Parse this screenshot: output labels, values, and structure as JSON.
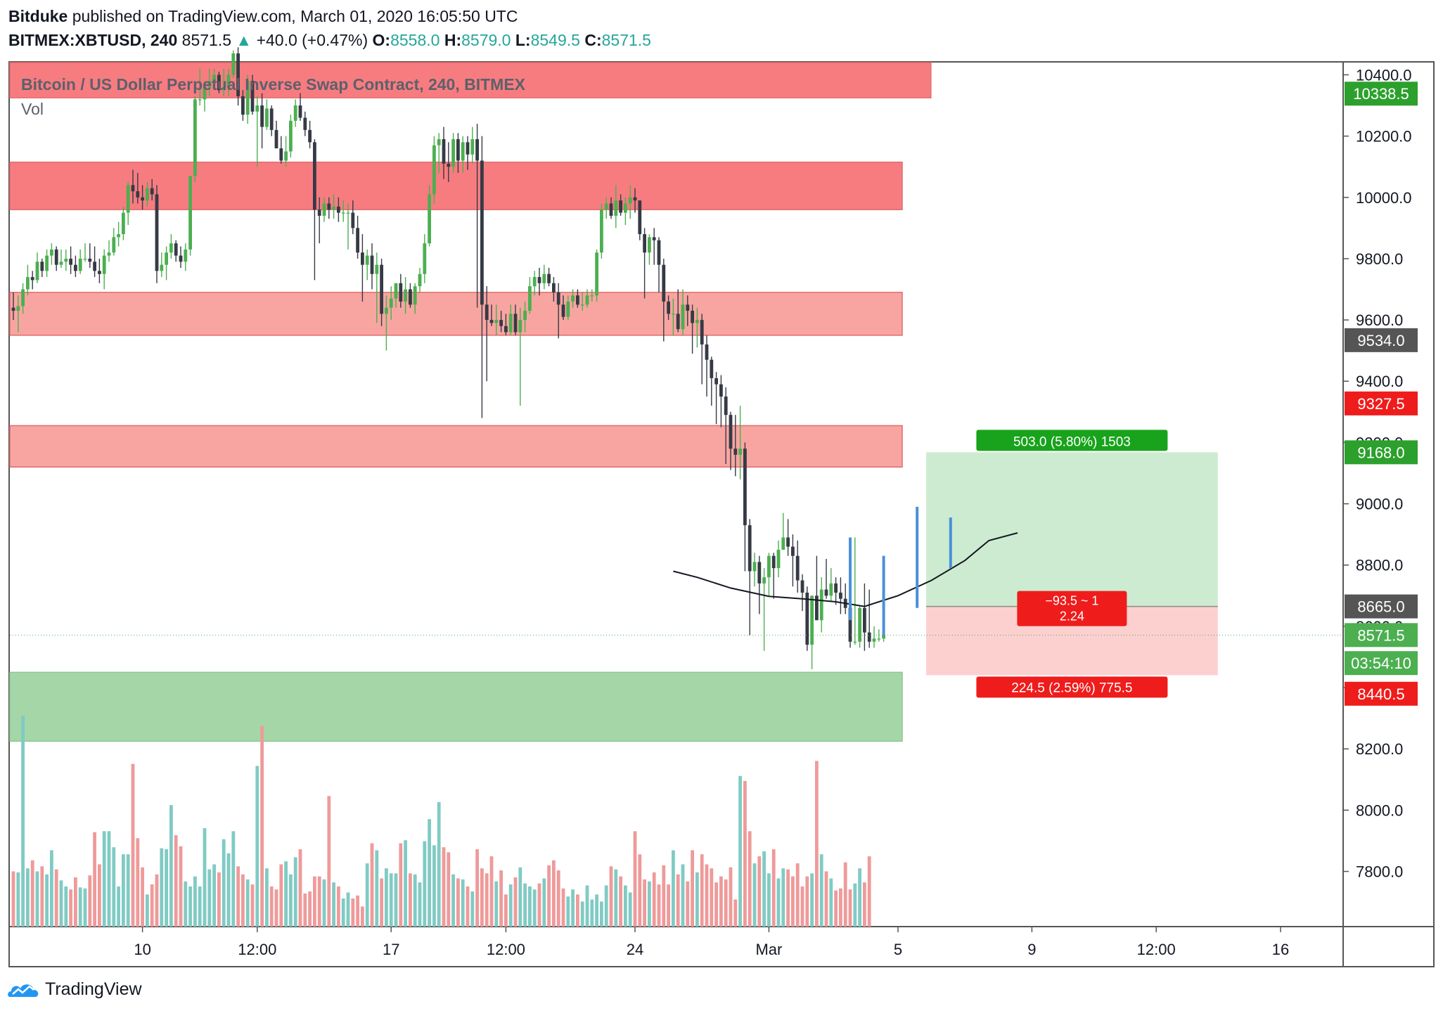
{
  "header": {
    "author": "Bitduke",
    "published_text": "published on TradingView.com, March 01, 2020 16:05:50 UTC",
    "symbol": "BITMEX:XBTUSD, 240",
    "last": "8571.5",
    "change": "+40.0 (+0.47%)",
    "o_label": "O:",
    "o_value": "8558.0",
    "h_label": "H:",
    "h_value": "8579.0",
    "l_label": "L:",
    "l_value": "8549.5",
    "c_label": "C:",
    "c_value": "8571.5"
  },
  "footer": {
    "brand": "TradingView"
  },
  "colors": {
    "up": "#26a69a",
    "candle_up": "#4caf50",
    "candle_down": "#363a45",
    "vol_up": "#80cbc4",
    "vol_down": "#ef9a9a",
    "zone_red": "#f77c80",
    "zone_red_light": "#f8a5a1",
    "zone_green": "#a5d6a7",
    "target_zone": "#cdebd0",
    "stop_zone": "#fdd0d0",
    "projection": "#4a90d9"
  },
  "chart_data": {
    "type": "candlestick",
    "title": "Bitcoin / US Dollar Perpetual Inverse Swap Contract, 240, BITMEX",
    "volume_label": "Vol",
    "y_axis": {
      "min": 7620,
      "max": 10440,
      "ticks": [
        7800,
        8000,
        8200,
        8400,
        8600,
        8800,
        9000,
        9200,
        9400,
        9600,
        9800,
        10000,
        10200,
        10400
      ]
    },
    "y_tick_labels": [
      "7800.0",
      "8000.0",
      "8200.0",
      "8400.0",
      "8600.0",
      "8800.0",
      "9000.0",
      "9200.0",
      "9400.0",
      "9600.0",
      "9800.0",
      "10000.0",
      "10200.0",
      "10400.0"
    ],
    "x_axis": {
      "labels": [
        "10",
        "12:00",
        "17",
        "12:00",
        "24",
        "Mar",
        "5",
        "9",
        "12:00",
        "16"
      ],
      "label_bars": [
        27,
        51,
        79,
        103,
        130,
        158,
        185,
        213,
        239,
        265
      ]
    },
    "price_labels": [
      {
        "value": "10338.5",
        "price": 10338.5,
        "color": "#2ca02c"
      },
      {
        "value": "9534.0",
        "price": 9534.0,
        "color": "#555555"
      },
      {
        "value": "9327.5",
        "price": 9327.5,
        "color": "#ef1c1c"
      },
      {
        "value": "9168.0",
        "price": 9168.0,
        "color": "#2ca02c"
      },
      {
        "value": "8665.0",
        "price": 8665.0,
        "color": "#555555"
      },
      {
        "value": "8571.5",
        "price": 8571.5,
        "color": "#4caf50"
      },
      {
        "value": "03:54:10",
        "price": 8480,
        "color": "#4caf50"
      },
      {
        "value": "8440.5",
        "price": 8380,
        "color": "#ef1c1c"
      }
    ],
    "zones": [
      {
        "name": "resistance-1",
        "from": 10325,
        "to": 10510,
        "bar_end": 186,
        "color": "#f77c80"
      },
      {
        "name": "resistance-2",
        "from": 9960,
        "to": 10115,
        "bar_end": 180,
        "color": "#f77c80"
      },
      {
        "name": "resistance-3",
        "from": 9550,
        "to": 9690,
        "bar_end": 180,
        "color": "#f8a5a1"
      },
      {
        "name": "resistance-4",
        "from": 9120,
        "to": 9255,
        "bar_end": 180,
        "color": "#f8a5a1"
      },
      {
        "name": "support-1",
        "from": 8225,
        "to": 8450,
        "bar_end": 180,
        "color": "#a5d6a7"
      }
    ],
    "position": {
      "entry": 8665.0,
      "target": 9168.0,
      "stop": 8440.5,
      "bar_start": 185,
      "bar_end": 246,
      "target_label": "503.0 (5.80%) 1503",
      "stop_label": "224.5 (2.59%) 775.5",
      "ratio_line1": "−93.5 ~ 1",
      "ratio_line2": "2.24"
    },
    "projection_bars": [
      {
        "bar": 175,
        "low": 8620,
        "high": 8890
      },
      {
        "bar": 182,
        "low": 8570,
        "high": 8830
      },
      {
        "bar": 189,
        "low": 8660,
        "high": 8990
      },
      {
        "bar": 196,
        "low": 8790,
        "high": 8955
      }
    ],
    "ma_curve": [
      [
        138,
        8780
      ],
      [
        143,
        8760
      ],
      [
        150,
        8725
      ],
      [
        158,
        8698
      ],
      [
        165,
        8690
      ],
      [
        172,
        8680
      ],
      [
        178,
        8665
      ],
      [
        185,
        8700
      ],
      [
        192,
        8750
      ],
      [
        199,
        8815
      ],
      [
        204,
        8880
      ],
      [
        210,
        8905
      ]
    ],
    "current_price": 8571.5,
    "candles": {
      "start_date": "2020-02-07",
      "opens": [
        9640,
        9630,
        9645,
        9700,
        9740,
        9730,
        9790,
        9760,
        9810,
        9830,
        9780,
        9790,
        9800,
        9780,
        9760,
        9800,
        9800,
        9790,
        9760,
        9750,
        9810,
        9820,
        9870,
        9880,
        9950,
        10040,
        10020,
        10000,
        9990,
        10030,
        10010,
        9760,
        9780,
        9820,
        9850,
        9810,
        9790,
        9830,
        10070,
        10320,
        10320,
        10360,
        10380,
        10400,
        10350,
        10360,
        10400,
        10470,
        10330,
        10270,
        10380,
        10280,
        10300,
        10230,
        10290,
        10220,
        10160,
        10120,
        10150,
        10250,
        10300,
        10260,
        10220,
        10180,
        9960,
        9940,
        9980,
        9960,
        9970,
        9950,
        9950,
        9950,
        9900,
        9820,
        9780,
        9810,
        9750,
        9780,
        9620,
        9640,
        9670,
        9720,
        9660,
        9700,
        9650,
        9710,
        9750,
        9850,
        10010,
        10170,
        10190,
        10110,
        10100,
        10190,
        10120,
        10180,
        10140,
        10190,
        10120,
        9650,
        9600,
        9590,
        9600,
        9580,
        9560,
        9620,
        9560,
        9600,
        9630,
        9710,
        9740,
        9720,
        9750,
        9720,
        9690,
        9650,
        9610,
        9660,
        9680,
        9650,
        9650,
        9680,
        9680,
        9820,
        9960,
        9980,
        9940,
        9990,
        9950,
        9980,
        10000,
        9990,
        9880,
        9820,
        9870,
        9860,
        9780,
        9660,
        9620,
        9620,
        9570,
        9650,
        9630,
        9590,
        9600,
        9520,
        9470,
        9410,
        9390,
        9350,
        9290,
        9180,
        9160,
        9180,
        8930,
        8780,
        8810,
        8740,
        8760,
        8830,
        8790,
        8850,
        8890,
        8860,
        8830,
        8750,
        8710,
        8540,
        8700,
        8620,
        8720,
        8700,
        8740,
        8710,
        8690,
        8660,
        8550,
        8550,
        8660,
        8580,
        8550,
        8560,
        8560
      ],
      "highs": [
        9690,
        9680,
        9720,
        9780,
        9760,
        9820,
        9800,
        9830,
        9850,
        9840,
        9830,
        9830,
        9840,
        9810,
        9830,
        9850,
        9850,
        9840,
        9800,
        9830,
        9860,
        9900,
        9920,
        9970,
        10050,
        10090,
        10080,
        10040,
        10050,
        10060,
        10040,
        9820,
        9840,
        9880,
        9860,
        9840,
        9850,
        10070,
        10330,
        10420,
        10380,
        10420,
        10420,
        10410,
        10420,
        10420,
        10480,
        10490,
        10350,
        10400,
        10400,
        10330,
        10340,
        10320,
        10300,
        10250,
        10200,
        10200,
        10270,
        10320,
        10340,
        10280,
        10250,
        10190,
        10000,
        10000,
        10000,
        10010,
        10000,
        9990,
        9980,
        9990,
        9940,
        9880,
        9830,
        9850,
        9820,
        9800,
        9680,
        9710,
        9720,
        9750,
        9740,
        9720,
        9720,
        9770,
        9880,
        10040,
        10200,
        10210,
        10230,
        10180,
        10210,
        10210,
        10200,
        10200,
        10230,
        10240,
        10200,
        9710,
        9650,
        9650,
        9630,
        9620,
        9650,
        9650,
        9640,
        9660,
        9740,
        9760,
        9770,
        9780,
        9770,
        9740,
        9720,
        9680,
        9680,
        9700,
        9700,
        9690,
        9700,
        9700,
        9830,
        9980,
        10000,
        10000,
        10040,
        10010,
        10000,
        10040,
        10030,
        9990,
        9900,
        9880,
        9900,
        9870,
        9800,
        9680,
        9670,
        9700,
        9700,
        9680,
        9650,
        9640,
        9620,
        9550,
        9480,
        9430,
        9420,
        9380,
        9300,
        9290,
        9320,
        9200,
        8950,
        8840,
        8830,
        8790,
        8840,
        8840,
        8880,
        8970,
        8950,
        8900,
        8880,
        8770,
        8730,
        8700,
        8830,
        8760,
        8820,
        8790,
        8760,
        8760,
        8740,
        8700,
        8890,
        8670,
        8740,
        8720,
        8600,
        8590,
        8580
      ],
      "lows": [
        9600,
        9560,
        9620,
        9680,
        9700,
        9720,
        9740,
        9740,
        9780,
        9760,
        9770,
        9760,
        9750,
        9740,
        9750,
        9790,
        9770,
        9740,
        9720,
        9700,
        9790,
        9810,
        9840,
        9860,
        9910,
        9980,
        9980,
        9960,
        9970,
        9990,
        9720,
        9740,
        9730,
        9800,
        9790,
        9770,
        9760,
        9810,
        10050,
        10300,
        10280,
        10330,
        10360,
        10340,
        10330,
        10330,
        10390,
        10300,
        10250,
        10240,
        10270,
        10100,
        10160,
        10220,
        10200,
        10200,
        10110,
        10100,
        10130,
        10230,
        10250,
        10200,
        10160,
        9730,
        9850,
        9920,
        9930,
        9930,
        9920,
        9920,
        9830,
        9880,
        9800,
        9660,
        9730,
        9700,
        9590,
        9580,
        9500,
        9600,
        9640,
        9640,
        9620,
        9640,
        9620,
        9690,
        9720,
        9840,
        9980,
        10080,
        10060,
        10050,
        10080,
        10080,
        10080,
        10090,
        10110,
        9640,
        9280,
        9400,
        9580,
        9550,
        9560,
        9550,
        9550,
        9550,
        9320,
        9560,
        9620,
        9680,
        9680,
        9700,
        9710,
        9660,
        9540,
        9600,
        9600,
        9640,
        9640,
        9630,
        9640,
        9660,
        9660,
        9800,
        9930,
        9930,
        9900,
        9940,
        9910,
        9930,
        9950,
        9860,
        9670,
        9780,
        9780,
        9690,
        9530,
        9600,
        9550,
        9560,
        9550,
        9580,
        9490,
        9510,
        9390,
        9350,
        9320,
        9260,
        9250,
        9130,
        9110,
        9090,
        9080,
        8780,
        8570,
        8730,
        8640,
        8520,
        8700,
        8690,
        8760,
        8850,
        8830,
        8730,
        8710,
        8650,
        8520,
        8460,
        8620,
        8580,
        8690,
        8680,
        8670,
        8640,
        8640,
        8530,
        8540,
        8530,
        8520,
        8530,
        8530,
        8550,
        8549.5
      ],
      "closes": [
        9630,
        9645,
        9700,
        9740,
        9730,
        9790,
        9760,
        9810,
        9830,
        9780,
        9790,
        9800,
        9780,
        9760,
        9800,
        9800,
        9790,
        9760,
        9750,
        9810,
        9820,
        9870,
        9880,
        9950,
        10040,
        10020,
        10000,
        9990,
        10030,
        10010,
        9760,
        9780,
        9820,
        9850,
        9810,
        9790,
        9830,
        10070,
        10320,
        10320,
        10360,
        10380,
        10400,
        10350,
        10360,
        10400,
        10470,
        10330,
        10270,
        10380,
        10280,
        10300,
        10230,
        10290,
        10220,
        10160,
        10120,
        10150,
        10250,
        10300,
        10260,
        10220,
        10180,
        9960,
        9940,
        9980,
        9960,
        9970,
        9950,
        9950,
        9950,
        9900,
        9820,
        9780,
        9810,
        9750,
        9780,
        9620,
        9640,
        9670,
        9720,
        9660,
        9700,
        9650,
        9710,
        9750,
        9850,
        10010,
        10170,
        10190,
        10110,
        10100,
        10190,
        10120,
        10180,
        10140,
        10190,
        10120,
        9650,
        9600,
        9590,
        9600,
        9580,
        9560,
        9620,
        9560,
        9600,
        9630,
        9710,
        9740,
        9720,
        9750,
        9720,
        9690,
        9650,
        9610,
        9660,
        9680,
        9650,
        9650,
        9680,
        9680,
        9820,
        9960,
        9980,
        9940,
        9990,
        9950,
        9980,
        10000,
        9990,
        9880,
        9820,
        9870,
        9860,
        9780,
        9660,
        9620,
        9620,
        9570,
        9650,
        9630,
        9590,
        9600,
        9520,
        9470,
        9410,
        9390,
        9350,
        9290,
        9180,
        9160,
        9180,
        8930,
        8780,
        8810,
        8740,
        8760,
        8830,
        8790,
        8850,
        8890,
        8860,
        8830,
        8750,
        8710,
        8540,
        8700,
        8620,
        8720,
        8700,
        8740,
        8710,
        8690,
        8660,
        8550,
        8550,
        8660,
        8580,
        8550,
        8560,
        8560,
        8571.5
      ],
      "volumes": [
        55,
        54,
        210,
        58,
        66,
        55,
        60,
        52,
        76,
        57,
        46,
        40,
        37,
        49,
        39,
        38,
        51,
        94,
        62,
        95,
        95,
        79,
        40,
        72,
        72,
        162,
        88,
        59,
        32,
        42,
        52,
        78,
        77,
        121,
        91,
        80,
        45,
        40,
        50,
        40,
        98,
        57,
        62,
        54,
        87,
        73,
        95,
        60,
        52,
        47,
        42,
        160,
        200,
        58,
        40,
        37,
        62,
        65,
        52,
        69,
        77,
        33,
        35,
        50,
        50,
        47,
        130,
        44,
        40,
        28,
        34,
        28,
        31,
        20,
        63,
        83,
        76,
        48,
        58,
        53,
        53,
        83,
        86,
        53,
        52,
        44,
        85,
        107,
        81,
        124,
        79,
        74,
        52,
        48,
        47,
        40,
        35,
        77,
        58,
        53,
        70,
        45,
        56,
        32,
        42,
        49,
        59,
        43,
        40,
        37,
        43,
        48,
        61,
        66,
        56,
        38,
        30,
        37,
        32,
        25,
        41,
        27,
        32,
        25,
        41,
        60,
        57,
        50,
        41,
        34,
        95,
        72,
        47,
        45,
        54,
        42,
        61,
        42,
        76,
        52,
        62,
        45,
        76,
        54,
        72,
        62,
        58,
        44,
        50,
        47,
        59,
        27,
        150,
        145,
        95,
        63,
        70,
        75,
        53,
        77,
        48,
        58,
        57,
        50,
        63,
        40,
        50,
        53,
        165,
        72,
        55,
        48,
        36,
        38,
        64,
        37,
        43,
        58,
        44,
        70
      ]
    }
  }
}
